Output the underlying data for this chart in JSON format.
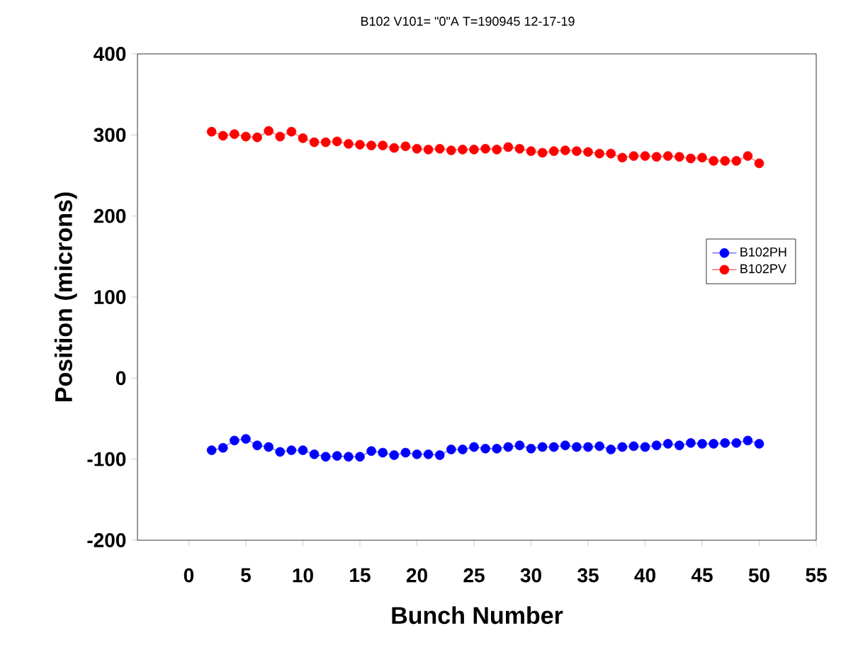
{
  "chart_data": {
    "type": "line",
    "title": "B102  V101= \"0\"A T=190945    12-17-19",
    "xlabel": "Bunch Number",
    "ylabel": "Position (microns)",
    "x": [
      2,
      3,
      4,
      5,
      6,
      7,
      8,
      9,
      10,
      11,
      12,
      13,
      14,
      15,
      16,
      17,
      18,
      19,
      20,
      21,
      22,
      23,
      24,
      25,
      26,
      27,
      28,
      29,
      30,
      31,
      32,
      33,
      34,
      35,
      36,
      37,
      38,
      39,
      40,
      41,
      42,
      43,
      44,
      45,
      46,
      47,
      48,
      49,
      50
    ],
    "series": [
      {
        "name": "B102PH",
        "color": "#0000ff",
        "values": [
          -89,
          -86,
          -77,
          -75,
          -83,
          -85,
          -91,
          -89,
          -89,
          -94,
          -97,
          -96,
          -97,
          -97,
          -90,
          -92,
          -95,
          -92,
          -94,
          -94,
          -95,
          -88,
          -88,
          -85,
          -87,
          -87,
          -85,
          -83,
          -87,
          -85,
          -85,
          -83,
          -85,
          -85,
          -84,
          -88,
          -85,
          -84,
          -85,
          -83,
          -81,
          -83,
          -80,
          -81,
          -81,
          -80,
          -80,
          -77,
          -81
        ]
      },
      {
        "name": "B102PV",
        "color": "#ff0000",
        "values": [
          304,
          299,
          301,
          298,
          297,
          305,
          298,
          304,
          296,
          291,
          291,
          292,
          289,
          288,
          287,
          287,
          284,
          286,
          283,
          282,
          283,
          281,
          282,
          282,
          283,
          282,
          285,
          283,
          280,
          278,
          280,
          281,
          280,
          279,
          277,
          277,
          272,
          274,
          274,
          273,
          274,
          273,
          271,
          272,
          268,
          268,
          268,
          274,
          265
        ]
      }
    ],
    "xlim": [
      -4.5,
      55
    ],
    "ylim": [
      -200,
      400
    ],
    "xticks": [
      0,
      5,
      10,
      15,
      20,
      25,
      30,
      35,
      40,
      45,
      50,
      55
    ],
    "yticks": [
      -200,
      -100,
      0,
      100,
      200,
      300,
      400
    ],
    "marker": "circle",
    "line_style": "solid",
    "grid": false,
    "legend": "right"
  }
}
